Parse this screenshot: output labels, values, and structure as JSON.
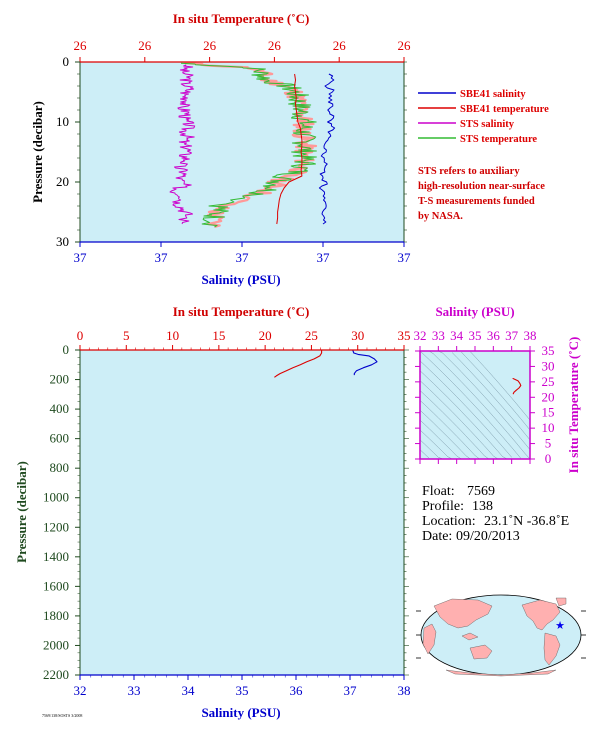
{
  "colors": {
    "plot_bg": "#cdeef7",
    "salinity": "#0000cc",
    "temperature": "#dd0000",
    "sts_salinity": "#cc00cc",
    "sts_temperature": "#33bb33",
    "sts_temperature_fill": "#ff9999",
    "axis_green": "#1f4a1f",
    "ts_axis": "#cc00cc",
    "land": "#ffb0b0",
    "ocean": "#cdeef7"
  },
  "top_panel": {
    "top_axis_title": "In situ Temperature (˚C)",
    "top_ticks": [
      "26",
      "26",
      "26",
      "26",
      "26",
      "26"
    ],
    "left_axis_title": "Pressure (decibar)",
    "left_ticks": [
      "0",
      "10",
      "20",
      "30"
    ],
    "bottom_axis_title": "Salinity (PSU)",
    "bottom_ticks": [
      "37",
      "37",
      "37",
      "37",
      "37"
    ],
    "legend": [
      {
        "label": "SBE41 salinity",
        "color": "#0000cc"
      },
      {
        "label": "SBE41 temperature",
        "color": "#dd0000"
      },
      {
        "label": "STS salinity",
        "color": "#cc00cc"
      },
      {
        "label": "STS temperature",
        "color": "#33bb33"
      }
    ],
    "note_lines": [
      "STS refers to auxiliary",
      "high-resolution near-surface",
      "T-S measurements funded",
      "by NASA."
    ]
  },
  "bottom_panel": {
    "top_axis_title": "In situ Temperature (˚C)",
    "top_ticks": [
      "0",
      "5",
      "10",
      "15",
      "20",
      "25",
      "30",
      "35"
    ],
    "left_axis_title": "Pressure (decibar)",
    "left_ticks": [
      "0",
      "200",
      "400",
      "600",
      "800",
      "1000",
      "1200",
      "1400",
      "1600",
      "1800",
      "2000",
      "2200"
    ],
    "bottom_axis_title": "Salinity (PSU)",
    "bottom_ticks": [
      "32",
      "33",
      "34",
      "35",
      "36",
      "37",
      "38"
    ]
  },
  "ts_panel": {
    "top_axis_title": "Salinity (PSU)",
    "top_ticks": [
      "32",
      "33",
      "34",
      "35",
      "36",
      "37",
      "38"
    ],
    "right_axis_title": "In situ Temperature (˚C)",
    "right_ticks": [
      "0",
      "5",
      "10",
      "15",
      "20",
      "25",
      "30",
      "35"
    ]
  },
  "info": {
    "float_label": "Float:",
    "float_value": "7569",
    "profile_label": "Profile:",
    "profile_value": "138",
    "location_label": "Location:",
    "location_value": "23.1˚N  -36.8˚E",
    "date_label": "Date:",
    "date_value": "09/20/2013"
  },
  "footer_code": "7569/138/SOSTS 3/2008",
  "chart_data": [
    {
      "type": "line",
      "title": "",
      "xlabel": "Salinity (PSU)",
      "x2label": "In situ Temperature (˚C)",
      "ylabel": "Pressure (decibar)",
      "ylim": [
        30,
        0
      ],
      "xlim_salinity": [
        36.98,
        37.02
      ],
      "xlim_temperature": [
        25.98,
        26.02
      ],
      "grid": false,
      "legend_position": "right",
      "series": [
        {
          "name": "SBE41 salinity",
          "x": [
            37.0108,
            37.0111,
            37.0106,
            37.0112,
            37.0107,
            37.0111,
            37.0108,
            37.0112,
            37.0106,
            37.0111,
            37.0108,
            37.0104,
            37.0098,
            37.0104,
            37.0099,
            37.0106,
            37.0101,
            37.0097,
            37.0104,
            37.0098,
            37.0105,
            37.0099,
            37.0104,
            37.0097,
            37.0105,
            37.01
          ],
          "y": [
            2,
            3,
            4,
            5,
            6,
            7,
            8,
            9,
            10,
            11,
            12,
            13,
            14,
            15,
            16,
            17,
            18,
            19,
            20,
            21,
            22,
            23,
            24,
            25,
            26,
            27
          ]
        },
        {
          "name": "SBE41 temperature",
          "x": [
            26.0065,
            26.0066,
            26.0065,
            26.0066,
            26.0067,
            26.0066,
            26.0067,
            26.0068,
            26.0069,
            26.0072,
            26.0073,
            26.0074,
            26.0074,
            26.0073,
            26.0074,
            26.0074,
            26.0073,
            26.0074,
            26.0058,
            26.0052,
            26.0048,
            26.0046,
            26.0045,
            26.0044,
            26.0044,
            26.0043
          ],
          "y": [
            2,
            3,
            4,
            5,
            6,
            7,
            8,
            9,
            10,
            11,
            12,
            13,
            14,
            15,
            16,
            17,
            18,
            19,
            20,
            21,
            22,
            23,
            24,
            25,
            26,
            27
          ]
        },
        {
          "name": "STS salinity",
          "x": [
            36.9934,
            36.9927,
            36.9934,
            36.993,
            36.9935,
            36.9929,
            36.9934,
            36.9925,
            36.9933,
            36.9928,
            36.9935,
            36.993,
            36.9933,
            36.9926,
            36.9934,
            36.9929,
            36.9932,
            36.9921,
            36.993,
            36.9922,
            36.9929,
            36.9916,
            36.993,
            36.9921,
            36.9928,
            36.9933,
            36.9926
          ],
          "y": [
            0.5,
            1.5,
            2.5,
            3.5,
            4.5,
            5.5,
            6.5,
            7.5,
            8.5,
            9.5,
            10.5,
            11.5,
            12.5,
            13.5,
            14.5,
            15.5,
            16.5,
            17.5,
            18.5,
            19.5,
            20.5,
            21.5,
            22.5,
            23.5,
            24.5,
            25.5,
            27
          ]
        },
        {
          "name": "STS temperature",
          "x": [
            25.9925,
            26.0015,
            26.0025,
            26.003,
            26.0055,
            26.0065,
            26.0068,
            26.0071,
            26.0072,
            26.0075,
            26.0077,
            26.0076,
            26.0075,
            26.0077,
            26.0078,
            26.0077,
            26.0076,
            26.0078,
            26.0072,
            26.0055,
            26.0045,
            26.0038,
            26.0022,
            25.9975,
            25.9968,
            25.9966,
            25.9966
          ],
          "y": [
            0.2,
            1,
            2,
            3,
            4,
            5,
            6,
            7,
            8,
            9,
            10,
            11,
            12,
            13,
            14,
            15,
            16,
            17,
            18,
            19,
            20,
            21,
            22,
            24,
            25,
            26,
            27.5
          ]
        }
      ]
    },
    {
      "type": "line",
      "title": "",
      "xlabel": "Salinity (PSU)",
      "x2label": "In situ Temperature (˚C)",
      "ylabel": "Pressure (decibar)",
      "ylim": [
        2200,
        0
      ],
      "xlim_salinity": [
        32,
        38
      ],
      "xlim_temperature": [
        0,
        35
      ],
      "grid": false,
      "series": [
        {
          "name": "SBE41 salinity",
          "x": [
            37.05,
            37.07,
            37.15,
            37.35,
            37.45,
            37.5,
            37.4,
            37.25,
            37.12,
            37.08,
            37.08
          ],
          "y": [
            0,
            20,
            30,
            40,
            60,
            80,
            100,
            120,
            140,
            160,
            170
          ]
        },
        {
          "name": "SBE41 temperature",
          "x": [
            26.1,
            26.1,
            25.9,
            25.3,
            24.5,
            23.8,
            23.0,
            22.3,
            21.6,
            21.2,
            21.0
          ],
          "y": [
            0,
            20,
            40,
            60,
            80,
            100,
            120,
            140,
            160,
            175,
            185
          ]
        }
      ]
    },
    {
      "type": "line",
      "title": "",
      "xlabel": "Salinity (PSU)",
      "ylabel": "In situ Temperature (˚C)",
      "xlim": [
        32,
        38
      ],
      "ylim": [
        0,
        35
      ],
      "grid": false,
      "series": [
        {
          "name": "T-S",
          "x": [
            37.08,
            37.12,
            37.25,
            37.4,
            37.5,
            37.45,
            37.35,
            37.15,
            37.07,
            37.05
          ],
          "y": [
            21.0,
            21.6,
            22.3,
            23.0,
            23.8,
            24.5,
            25.3,
            25.9,
            26.1,
            26.1
          ]
        }
      ]
    }
  ]
}
